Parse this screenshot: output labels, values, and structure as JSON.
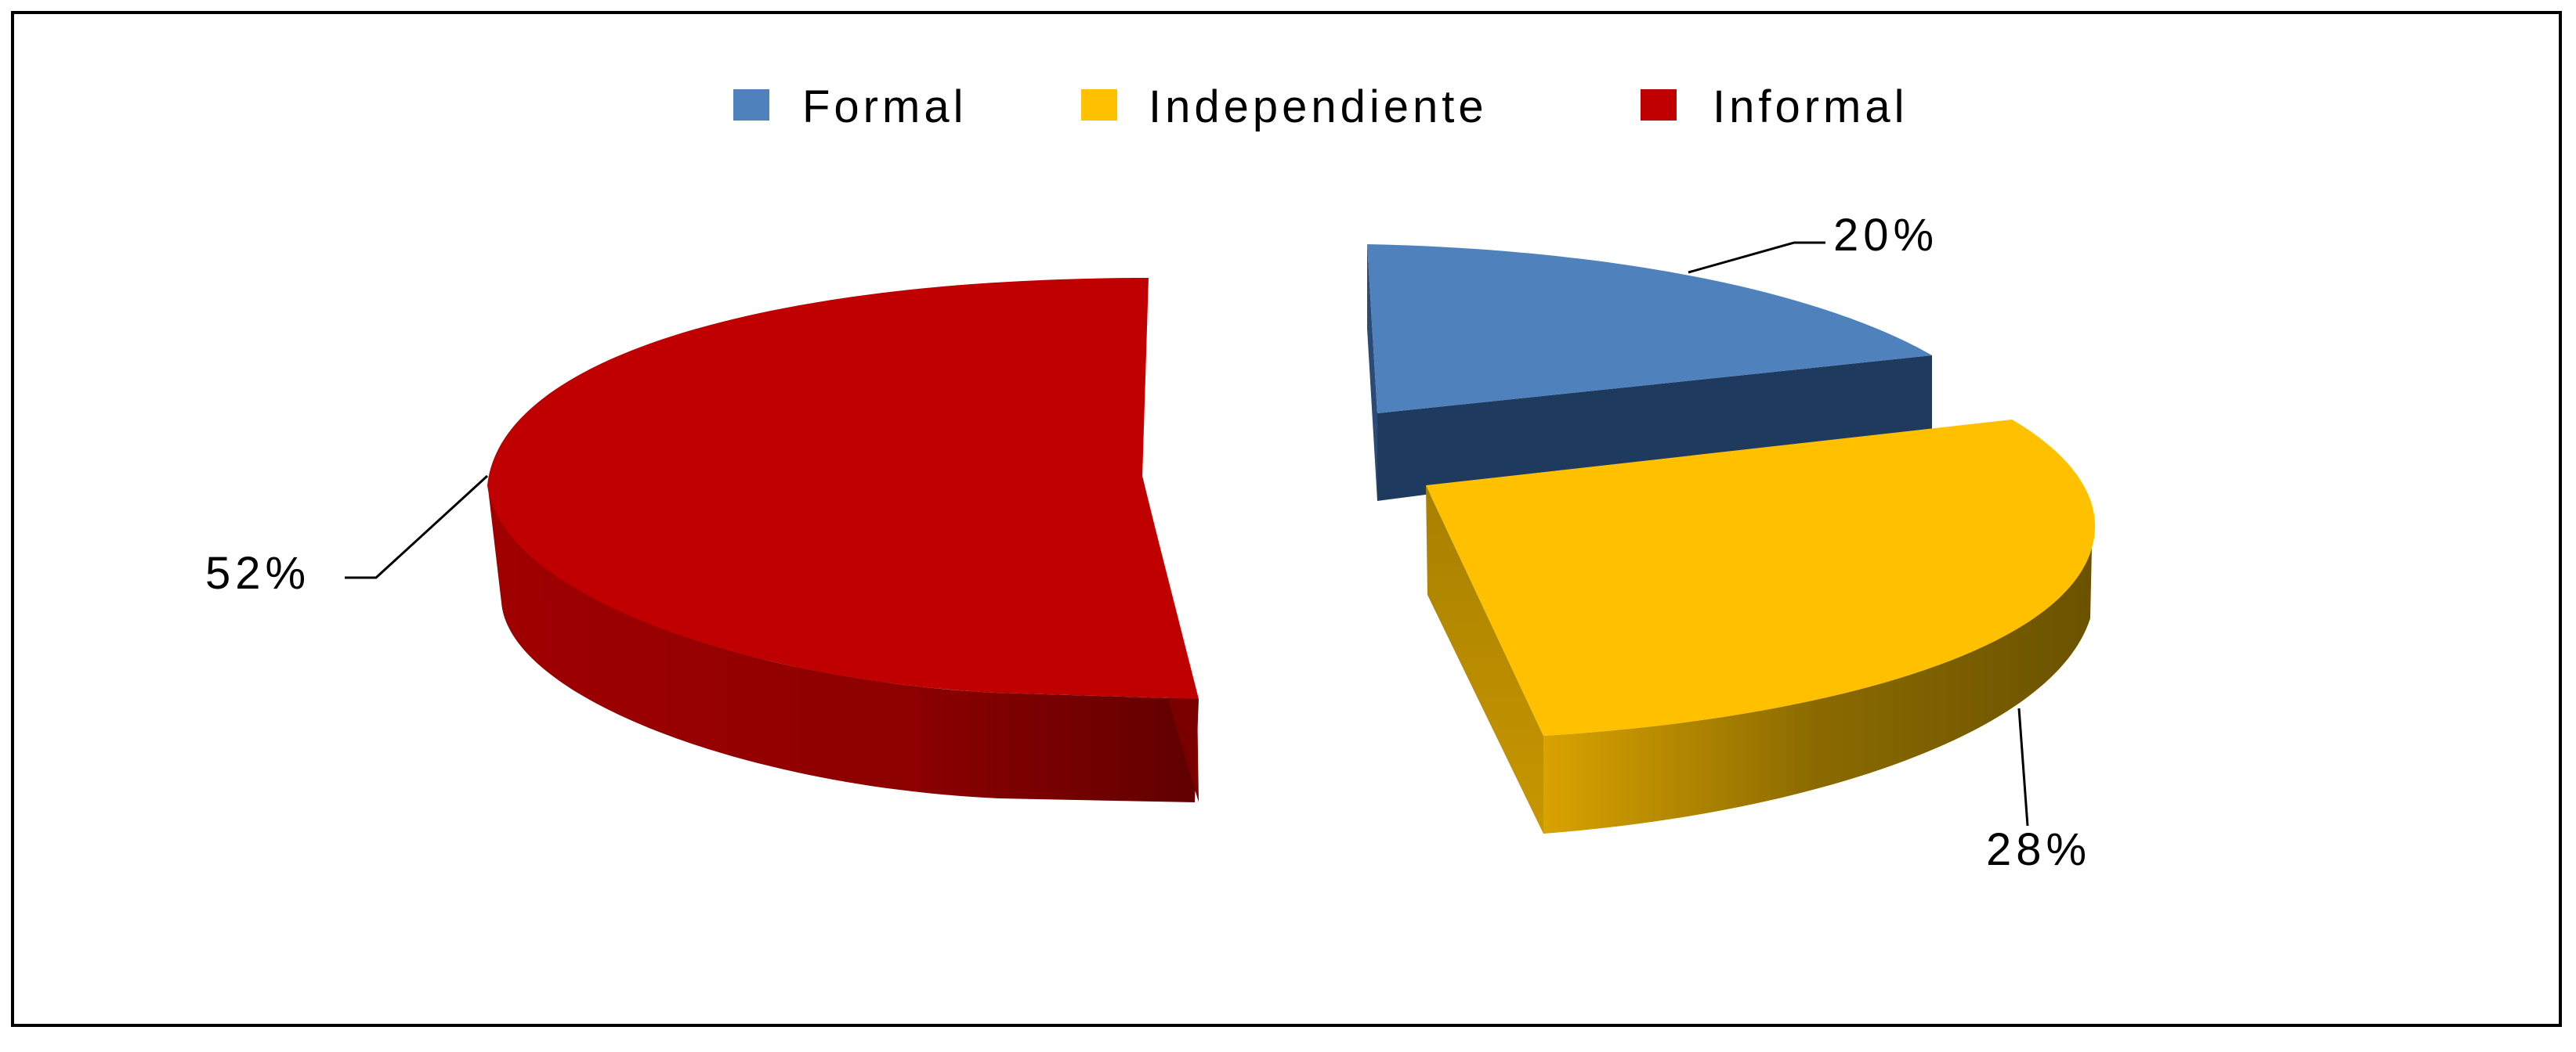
{
  "chart_data": {
    "type": "pie",
    "title": "",
    "legend_position": "top",
    "labels": [
      "Formal",
      "Independiente",
      "Informal"
    ],
    "values": [
      20,
      28,
      52
    ],
    "data_labels": [
      "20%",
      "28%",
      "52%"
    ],
    "colors": [
      "#4F81BD",
      "#FFC000",
      "#C00000"
    ],
    "style": "3d-exploded"
  }
}
